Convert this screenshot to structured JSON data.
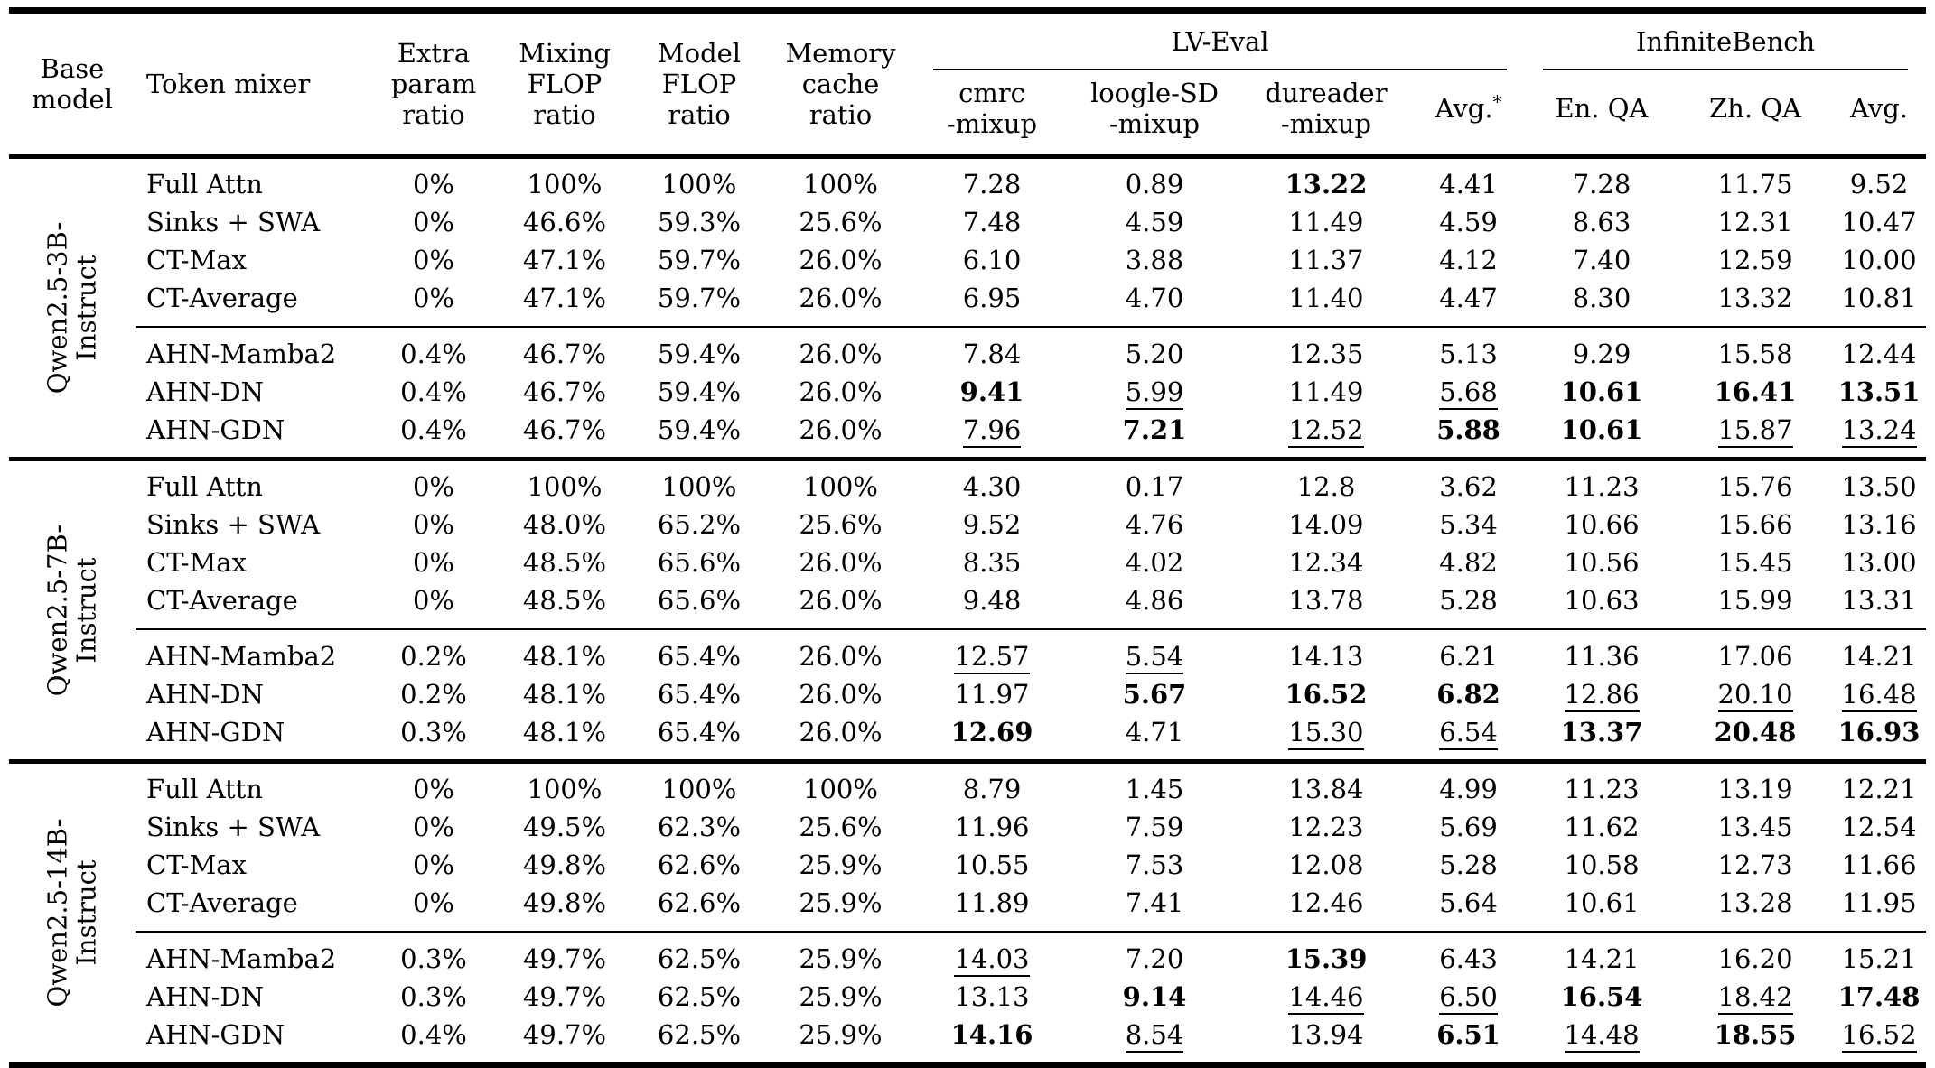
{
  "header": {
    "base_model_lines": [
      "Base",
      "model"
    ],
    "token_mixer": "Token mixer",
    "extra_param_lines": [
      "Extra",
      "param",
      "ratio"
    ],
    "mixing_flop_lines": [
      "Mixing",
      "FLOP",
      "ratio"
    ],
    "model_flop_lines": [
      "Model",
      "FLOP",
      "ratio"
    ],
    "memory_cache_lines": [
      "Memory",
      "cache",
      "ratio"
    ],
    "lv_eval": "LV-Eval",
    "infinite_bench": "InfiniteBench",
    "sub": {
      "cmrc_lines": [
        "cmrc",
        "-mixup"
      ],
      "loogle_lines": [
        "loogle-SD",
        "-mixup"
      ],
      "dureader_lines": [
        "dureader",
        "-mixup"
      ],
      "avg_star": "Avg.",
      "avg_star_sup": "*",
      "en_qa": "En. QA",
      "zh_qa": "Zh. QA",
      "avg": "Avg."
    }
  },
  "groups": [
    {
      "model_lines": [
        "Qwen2.5-3B-",
        "Instruct"
      ],
      "rows": [
        {
          "cells": [
            "Full Attn",
            "0%",
            "100%",
            "100%",
            "100%",
            "7.28",
            "0.89",
            "13.22",
            "4.41",
            "7.28",
            "11.75",
            "9.52"
          ],
          "marks": [
            "",
            "",
            "",
            "",
            "",
            "",
            "",
            "b",
            "",
            "",
            "",
            ""
          ]
        },
        {
          "cells": [
            "Sinks + SWA",
            "0%",
            "46.6%",
            "59.3%",
            "25.6%",
            "7.48",
            "4.59",
            "11.49",
            "4.59",
            "8.63",
            "12.31",
            "10.47"
          ],
          "marks": [
            "",
            "",
            "",
            "",
            "",
            "",
            "",
            "",
            "",
            "",
            "",
            ""
          ]
        },
        {
          "cells": [
            "CT-Max",
            "0%",
            "47.1%",
            "59.7%",
            "26.0%",
            "6.10",
            "3.88",
            "11.37",
            "4.12",
            "7.40",
            "12.59",
            "10.00"
          ],
          "marks": [
            "",
            "",
            "",
            "",
            "",
            "",
            "",
            "",
            "",
            "",
            "",
            ""
          ]
        },
        {
          "cells": [
            "CT-Average",
            "0%",
            "47.1%",
            "59.7%",
            "26.0%",
            "6.95",
            "4.70",
            "11.40",
            "4.47",
            "8.30",
            "13.32",
            "10.81"
          ],
          "marks": [
            "",
            "",
            "",
            "",
            "",
            "",
            "",
            "",
            "",
            "",
            "",
            ""
          ]
        },
        {
          "cells": [
            "AHN-Mamba2",
            "0.4%",
            "46.7%",
            "59.4%",
            "26.0%",
            "7.84",
            "5.20",
            "12.35",
            "5.13",
            "9.29",
            "15.58",
            "12.44"
          ],
          "marks": [
            "",
            "",
            "",
            "",
            "",
            "",
            "",
            "",
            "",
            "",
            "",
            ""
          ]
        },
        {
          "cells": [
            "AHN-DN",
            "0.4%",
            "46.7%",
            "59.4%",
            "26.0%",
            "9.41",
            "5.99",
            "11.49",
            "5.68",
            "10.61",
            "16.41",
            "13.51"
          ],
          "marks": [
            "",
            "",
            "",
            "",
            "",
            "b",
            "u",
            "",
            "u",
            "b",
            "b",
            "b"
          ]
        },
        {
          "cells": [
            "AHN-GDN",
            "0.4%",
            "46.7%",
            "59.4%",
            "26.0%",
            "7.96",
            "7.21",
            "12.52",
            "5.88",
            "10.61",
            "15.87",
            "13.24"
          ],
          "marks": [
            "",
            "",
            "",
            "",
            "",
            "u",
            "b",
            "u",
            "b",
            "b",
            "u",
            "u"
          ]
        }
      ]
    },
    {
      "model_lines": [
        "Qwen2.5-7B-",
        "Instruct"
      ],
      "rows": [
        {
          "cells": [
            "Full Attn",
            "0%",
            "100%",
            "100%",
            "100%",
            "4.30",
            "0.17",
            "12.8",
            "3.62",
            "11.23",
            "15.76",
            "13.50"
          ],
          "marks": [
            "",
            "",
            "",
            "",
            "",
            "",
            "",
            "",
            "",
            "",
            "",
            ""
          ]
        },
        {
          "cells": [
            "Sinks + SWA",
            "0%",
            "48.0%",
            "65.2%",
            "25.6%",
            "9.52",
            "4.76",
            "14.09",
            "5.34",
            "10.66",
            "15.66",
            "13.16"
          ],
          "marks": [
            "",
            "",
            "",
            "",
            "",
            "",
            "",
            "",
            "",
            "",
            "",
            ""
          ]
        },
        {
          "cells": [
            "CT-Max",
            "0%",
            "48.5%",
            "65.6%",
            "26.0%",
            "8.35",
            "4.02",
            "12.34",
            "4.82",
            "10.56",
            "15.45",
            "13.00"
          ],
          "marks": [
            "",
            "",
            "",
            "",
            "",
            "",
            "",
            "",
            "",
            "",
            "",
            ""
          ]
        },
        {
          "cells": [
            "CT-Average",
            "0%",
            "48.5%",
            "65.6%",
            "26.0%",
            "9.48",
            "4.86",
            "13.78",
            "5.28",
            "10.63",
            "15.99",
            "13.31"
          ],
          "marks": [
            "",
            "",
            "",
            "",
            "",
            "",
            "",
            "",
            "",
            "",
            "",
            ""
          ]
        },
        {
          "cells": [
            "AHN-Mamba2",
            "0.2%",
            "48.1%",
            "65.4%",
            "26.0%",
            "12.57",
            "5.54",
            "14.13",
            "6.21",
            "11.36",
            "17.06",
            "14.21"
          ],
          "marks": [
            "",
            "",
            "",
            "",
            "",
            "u",
            "u",
            "",
            "",
            "",
            "",
            ""
          ]
        },
        {
          "cells": [
            "AHN-DN",
            "0.2%",
            "48.1%",
            "65.4%",
            "26.0%",
            "11.97",
            "5.67",
            "16.52",
            "6.82",
            "12.86",
            "20.10",
            "16.48"
          ],
          "marks": [
            "",
            "",
            "",
            "",
            "",
            "",
            "b",
            "b",
            "b",
            "u",
            "u",
            "u"
          ]
        },
        {
          "cells": [
            "AHN-GDN",
            "0.3%",
            "48.1%",
            "65.4%",
            "26.0%",
            "12.69",
            "4.71",
            "15.30",
            "6.54",
            "13.37",
            "20.48",
            "16.93"
          ],
          "marks": [
            "",
            "",
            "",
            "",
            "",
            "b",
            "",
            "u",
            "u",
            "b",
            "b",
            "b"
          ]
        }
      ]
    },
    {
      "model_lines": [
        "Qwen2.5-14B-",
        "Instruct"
      ],
      "rows": [
        {
          "cells": [
            "Full Attn",
            "0%",
            "100%",
            "100%",
            "100%",
            "8.79",
            "1.45",
            "13.84",
            "4.99",
            "11.23",
            "13.19",
            "12.21"
          ],
          "marks": [
            "",
            "",
            "",
            "",
            "",
            "",
            "",
            "",
            "",
            "",
            "",
            ""
          ]
        },
        {
          "cells": [
            "Sinks + SWA",
            "0%",
            "49.5%",
            "62.3%",
            "25.6%",
            "11.96",
            "7.59",
            "12.23",
            "5.69",
            "11.62",
            "13.45",
            "12.54"
          ],
          "marks": [
            "",
            "",
            "",
            "",
            "",
            "",
            "",
            "",
            "",
            "",
            "",
            ""
          ]
        },
        {
          "cells": [
            "CT-Max",
            "0%",
            "49.8%",
            "62.6%",
            "25.9%",
            "10.55",
            "7.53",
            "12.08",
            "5.28",
            "10.58",
            "12.73",
            "11.66"
          ],
          "marks": [
            "",
            "",
            "",
            "",
            "",
            "",
            "",
            "",
            "",
            "",
            "",
            ""
          ]
        },
        {
          "cells": [
            "CT-Average",
            "0%",
            "49.8%",
            "62.6%",
            "25.9%",
            "11.89",
            "7.41",
            "12.46",
            "5.64",
            "10.61",
            "13.28",
            "11.95"
          ],
          "marks": [
            "",
            "",
            "",
            "",
            "",
            "",
            "",
            "",
            "",
            "",
            "",
            ""
          ]
        },
        {
          "cells": [
            "AHN-Mamba2",
            "0.3%",
            "49.7%",
            "62.5%",
            "25.9%",
            "14.03",
            "7.20",
            "15.39",
            "6.43",
            "14.21",
            "16.20",
            "15.21"
          ],
          "marks": [
            "",
            "",
            "",
            "",
            "",
            "u",
            "",
            "b",
            "",
            "",
            "",
            ""
          ]
        },
        {
          "cells": [
            "AHN-DN",
            "0.3%",
            "49.7%",
            "62.5%",
            "25.9%",
            "13.13",
            "9.14",
            "14.46",
            "6.50",
            "16.54",
            "18.42",
            "17.48"
          ],
          "marks": [
            "",
            "",
            "",
            "",
            "",
            "",
            "b",
            "u",
            "u",
            "b",
            "u",
            "b"
          ]
        },
        {
          "cells": [
            "AHN-GDN",
            "0.4%",
            "49.7%",
            "62.5%",
            "25.9%",
            "14.16",
            "8.54",
            "13.94",
            "6.51",
            "14.48",
            "18.55",
            "16.52"
          ],
          "marks": [
            "",
            "",
            "",
            "",
            "",
            "b",
            "u",
            "",
            "b",
            "u",
            "b",
            "u"
          ]
        }
      ]
    }
  ]
}
